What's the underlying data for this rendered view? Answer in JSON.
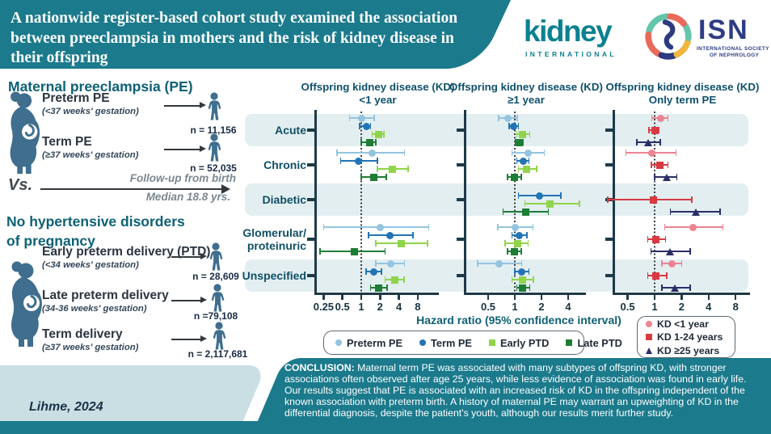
{
  "colors": {
    "teal": "#1b7a8c",
    "pale_panel": "#c9dfe4",
    "band": "#e3eef1",
    "axis": "#1d3a48",
    "icon_blue": "#3f6e8e",
    "series": {
      "preterm_pe": "#93c4e0",
      "term_pe": "#2274b5",
      "early_ptd": "#90d44b",
      "late_ptd": "#1e7d35",
      "kd_lt1": "#ec8492",
      "kd_1_24": "#d93a42",
      "kd_ge25": "#2a2e67"
    }
  },
  "header": {
    "title_lines": [
      "A nationwide register-based cohort study examined the association",
      "between preeclampsia in mothers and the risk of kidney disease in",
      "their offspring"
    ],
    "kidney_logo": {
      "word": "kidney",
      "sub": "INTERNATIONAL"
    },
    "isn_logo": {
      "acronym": "ISN",
      "sub1": "INTERNATIONAL SOCIETY",
      "sub2": "OF NEPHROLOGY"
    }
  },
  "exposure_panel": {
    "group1_heading": "Maternal preeclampsia (PE)",
    "group1_rows": [
      {
        "title": "Preterm PE",
        "subtitle": "(<37 weeks' gestation)",
        "n_label": "n = 11,156"
      },
      {
        "title": "Term PE",
        "subtitle": "(≥37 weeks' gestation)",
        "n_label": "n = 52,035"
      }
    ],
    "versus": "Vs.",
    "followup_line1": "Follow-up from birth",
    "followup_line2": "Median 18.8 yrs.",
    "group2_heading_line1": "No hypertensive disorders",
    "group2_heading_line2": "of pregnancy",
    "group2_rows": [
      {
        "title": "Early preterm delivery (PTD)",
        "subtitle": "(<34 weeks' gestation)",
        "n_label": "n = 28,609"
      },
      {
        "title": "Late preterm delivery",
        "subtitle": "(34-36 weeks' gestation)",
        "n_label": "n =79,108"
      },
      {
        "title": "Term delivery",
        "subtitle": "(≥37  weeks' gestation)",
        "n_label": "n = 2,117,681"
      }
    ]
  },
  "chart_data": {
    "type": "forest",
    "xlabel": "Hazard ratio (95% confidence interval)",
    "reference_line": 1,
    "scale": "log2",
    "categories": [
      [
        "Acute"
      ],
      [
        "Chronic"
      ],
      [
        "Diabetic"
      ],
      [
        "Glomerular/",
        "proteinuric"
      ],
      [
        "Unspecified"
      ]
    ],
    "panels": [
      {
        "title_line1": "Offspring kidney disease (KD)",
        "title_line2": "<1 year",
        "ticks": [
          0.25,
          0.5,
          1,
          2,
          4,
          8
        ],
        "series": [
          {
            "name": "Preterm PE",
            "marker": "circle",
            "color_key": "preterm_pe",
            "values": [
              [
                1.0,
                0.65,
                1.6
              ],
              [
                1.5,
                0.41,
                4.9
              ],
              null,
              [
                2.0,
                0.25,
                12.0
              ],
              [
                3.0,
                1.7,
                4.9
              ]
            ]
          },
          {
            "name": "Term PE",
            "marker": "circle",
            "color_key": "term_pe",
            "values": [
              [
                1.2,
                0.95,
                1.4
              ],
              [
                0.9,
                0.47,
                1.8
              ],
              null,
              [
                2.9,
                1.3,
                6.7
              ],
              [
                1.6,
                1.2,
                2.1
              ]
            ]
          },
          {
            "name": "Early PTD",
            "marker": "square",
            "color_key": "early_ptd",
            "values": [
              [
                1.9,
                1.5,
                2.3
              ],
              [
                3.1,
                1.8,
                5.6
              ],
              null,
              [
                4.3,
                1.7,
                11.5
              ],
              [
                3.4,
                2.4,
                4.8
              ]
            ]
          },
          {
            "name": "Late PTD",
            "marker": "square",
            "color_key": "late_ptd",
            "values": [
              [
                1.35,
                1.0,
                1.7
              ],
              [
                1.6,
                1.0,
                2.5
              ],
              null,
              [
                0.77,
                0.22,
                2.4
              ],
              [
                1.9,
                1.4,
                2.6
              ]
            ]
          }
        ]
      },
      {
        "title_line1": "Offspring kidney disease (KD)",
        "title_line2": "≥1 year",
        "ticks": [
          0.5,
          1,
          2,
          4
        ],
        "series": [
          {
            "name": "Preterm PE",
            "marker": "circle",
            "color_key": "preterm_pe",
            "values": [
              [
                0.84,
                0.66,
                1.07
              ],
              [
                1.4,
                0.93,
                2.15
              ],
              null,
              [
                1.0,
                0.64,
                1.6
              ],
              [
                0.67,
                0.38,
                1.2
              ]
            ]
          },
          {
            "name": "Term PE",
            "marker": "circle",
            "color_key": "term_pe",
            "values": [
              [
                0.97,
                0.86,
                1.1
              ],
              [
                1.25,
                1.05,
                1.45
              ],
              [
                1.9,
                1.1,
                3.3
              ],
              [
                1.12,
                0.93,
                1.37
              ],
              [
                1.19,
                1.0,
                1.45
              ]
            ]
          },
          {
            "name": "Early PTD",
            "marker": "square",
            "color_key": "early_ptd",
            "values": [
              [
                1.23,
                1.05,
                1.47
              ],
              [
                1.37,
                1.1,
                1.77
              ],
              [
                2.5,
                1.3,
                5.4
              ],
              [
                1.07,
                0.78,
                1.42
              ],
              [
                1.23,
                0.93,
                1.63
              ]
            ]
          },
          {
            "name": "Late PTD",
            "marker": "square",
            "color_key": "late_ptd",
            "values": [
              [
                1.12,
                1.02,
                1.23
              ],
              [
                0.98,
                0.83,
                1.19
              ],
              [
                1.32,
                0.74,
                2.4
              ],
              [
                0.99,
                0.83,
                1.19
              ],
              [
                1.23,
                1.05,
                1.47
              ]
            ]
          }
        ]
      },
      {
        "title_line1": "Offspring kidney disease (KD)",
        "title_line2": "Only term PE",
        "ticks": [
          0.5,
          1,
          2,
          4,
          8
        ],
        "series": [
          {
            "name": "KD <1 year",
            "marker": "circle",
            "color_key": "kd_lt1",
            "values": [
              [
                1.17,
                0.93,
                1.41
              ],
              [
                0.93,
                0.48,
                1.74
              ],
              null,
              [
                2.7,
                1.3,
                5.8
              ],
              [
                1.55,
                1.2,
                2.0
              ]
            ]
          },
          {
            "name": "KD 1-24 years",
            "marker": "square",
            "color_key": "kd_1_24",
            "values": [
              [
                1.0,
                0.86,
                1.11
              ],
              [
                1.15,
                0.92,
                1.41
              ],
              [
                0.97,
                0.3,
                2.6
              ],
              [
                1.04,
                0.84,
                1.32
              ],
              [
                1.04,
                0.84,
                1.36
              ]
            ]
          },
          {
            "name": "KD ≥25 years",
            "marker": "triangle",
            "color_key": "kd_ge25",
            "values": [
              [
                0.86,
                0.63,
                1.15
              ],
              [
                1.38,
                1.0,
                1.77
              ],
              [
                2.9,
                1.5,
                5.4
              ],
              [
                1.5,
                0.91,
                2.5
              ],
              [
                1.7,
                1.2,
                2.5
              ]
            ]
          }
        ]
      }
    ]
  },
  "legend1": {
    "items": [
      {
        "label": "Preterm PE",
        "marker": "circle",
        "color_key": "preterm_pe"
      },
      {
        "label": "Term PE",
        "marker": "circle",
        "color_key": "term_pe"
      },
      {
        "label": "Early PTD",
        "marker": "square",
        "color_key": "early_ptd"
      },
      {
        "label": "Late PTD",
        "marker": "square",
        "color_key": "late_ptd"
      }
    ]
  },
  "legend2": {
    "items": [
      {
        "label": "KD <1 year",
        "marker": "circle",
        "color_key": "kd_lt1"
      },
      {
        "label": "KD 1-24 years",
        "marker": "square",
        "color_key": "kd_1_24"
      },
      {
        "label": "KD ≥25 years",
        "marker": "triangle",
        "color_key": "kd_ge25"
      }
    ]
  },
  "conclusion": {
    "prefix": "CONCLUSION:",
    "text": " Maternal term PE was associated with many subtypes of offspring KD, with stronger associations often observed after age 25 years, while less evidence of association was found in early life. Our results suggest that PE is associated with an increased risk of KD in the offspring independent of the known association with preterm birth. A history of maternal PE may warrant an upweighting of KD in the differential diagnosis, despite the patient's youth, although our results merit further study."
  },
  "citation": "Lihme, 2024"
}
